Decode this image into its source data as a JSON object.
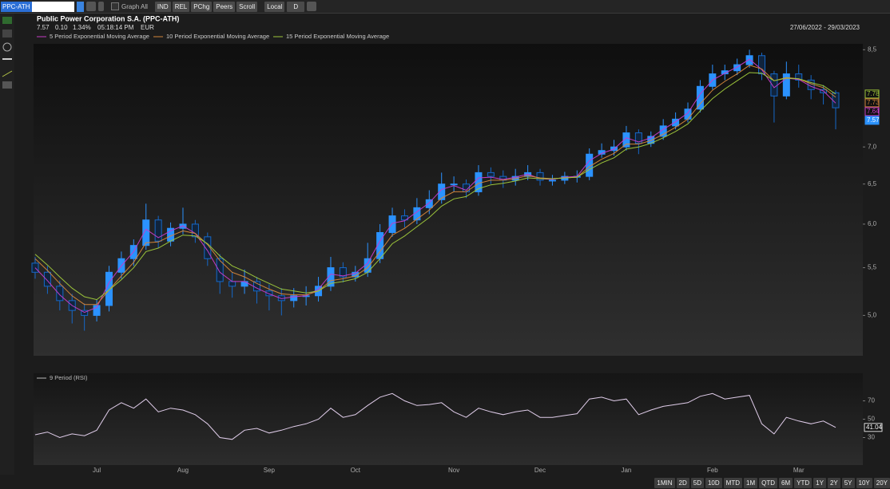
{
  "toolbar": {
    "symbol": "PPC-ATH",
    "graph_all": "Graph All",
    "buttons": [
      "IND",
      "REL",
      "PChg",
      "Peers",
      "Scroll"
    ],
    "currency_mode": "Local",
    "period": "D"
  },
  "header": {
    "title": "Public Power Corporation S.A. (PPC-ATH)",
    "last": "7.57",
    "change": "0.10",
    "change_pct": "1.34%",
    "time": "05:18:14 PM",
    "currency": "EUR",
    "date_range": "27/06/2022 - 29/03/2023"
  },
  "footer": {
    "periods": [
      "1MIN",
      "2D",
      "5D",
      "10D",
      "MTD",
      "1M",
      "QTD",
      "6M",
      "YTD",
      "1Y",
      "2Y",
      "5Y",
      "10Y",
      "20Y"
    ]
  },
  "chart_data": [
    {
      "type": "candlestick",
      "categories": [
        null,
        null,
        null,
        null,
        null,
        "Jul",
        null,
        null,
        null,
        null,
        null,
        null,
        "Aug",
        null,
        null,
        null,
        null,
        null,
        null,
        "Sep",
        null,
        null,
        null,
        null,
        null,
        null,
        "Oct",
        null,
        null,
        null,
        null,
        null,
        null,
        null,
        "Nov",
        null,
        null,
        null,
        null,
        null,
        null,
        "Dec",
        null,
        null,
        null,
        null,
        null,
        null,
        "Jan",
        null,
        null,
        null,
        null,
        null,
        null,
        "Feb",
        null,
        null,
        null,
        null,
        null,
        null,
        "Mar",
        null,
        null,
        null
      ],
      "open": [
        5.55,
        5.45,
        5.3,
        5.15,
        5.05,
        5.0,
        5.1,
        5.45,
        5.6,
        5.75,
        6.05,
        5.8,
        5.95,
        6.0,
        5.85,
        5.6,
        5.35,
        5.3,
        5.35,
        5.25,
        5.2,
        5.15,
        5.2,
        5.2,
        5.3,
        5.5,
        5.4,
        5.45,
        5.6,
        5.9,
        6.1,
        6.05,
        6.2,
        6.3,
        6.5,
        6.5,
        6.4,
        6.65,
        6.6,
        6.55,
        6.6,
        6.65,
        6.55,
        6.55,
        6.6,
        6.6,
        6.9,
        6.95,
        7.0,
        7.2,
        7.05,
        7.15,
        7.3,
        7.4,
        7.55,
        7.9,
        8.1,
        8.15,
        8.25,
        8.4,
        8.1,
        7.75,
        8.1,
        8.0,
        7.85,
        7.8
      ],
      "high": [
        5.62,
        5.52,
        5.36,
        5.22,
        5.12,
        5.16,
        5.52,
        5.68,
        5.82,
        6.25,
        6.1,
        6.02,
        6.2,
        6.05,
        5.9,
        5.65,
        5.45,
        5.48,
        5.4,
        5.32,
        5.28,
        5.28,
        5.3,
        5.4,
        5.62,
        5.56,
        5.52,
        5.78,
        6.0,
        6.2,
        6.18,
        6.32,
        6.42,
        6.65,
        6.6,
        6.56,
        6.75,
        6.72,
        6.68,
        6.7,
        6.75,
        6.7,
        6.62,
        6.66,
        6.68,
        6.98,
        7.05,
        7.1,
        7.3,
        7.25,
        7.22,
        7.4,
        7.5,
        7.65,
        8.0,
        8.25,
        8.25,
        8.35,
        8.5,
        8.45,
        8.15,
        8.3,
        8.25,
        8.08,
        7.92,
        7.84
      ],
      "low": [
        5.38,
        5.22,
        5.05,
        4.92,
        4.85,
        4.94,
        5.04,
        5.38,
        5.52,
        5.7,
        5.72,
        5.74,
        5.88,
        5.78,
        5.52,
        5.22,
        5.18,
        5.22,
        5.12,
        5.05,
        5.0,
        5.08,
        5.1,
        5.14,
        5.25,
        5.34,
        5.35,
        5.4,
        5.55,
        5.85,
        5.96,
        6.0,
        6.12,
        6.25,
        6.4,
        6.32,
        6.35,
        6.5,
        6.45,
        6.48,
        6.55,
        6.48,
        6.48,
        6.5,
        6.52,
        6.55,
        6.85,
        6.88,
        6.95,
        6.9,
        7.0,
        7.1,
        7.25,
        7.35,
        7.5,
        7.85,
        8.0,
        8.08,
        8.2,
        8.0,
        7.35,
        7.7,
        7.88,
        7.7,
        7.62,
        7.25
      ],
      "close": [
        5.45,
        5.3,
        5.15,
        5.05,
        5.0,
        5.1,
        5.45,
        5.6,
        5.75,
        6.05,
        5.8,
        5.95,
        6.0,
        5.85,
        5.6,
        5.35,
        5.3,
        5.35,
        5.25,
        5.2,
        5.15,
        5.2,
        5.2,
        5.3,
        5.5,
        5.4,
        5.45,
        5.6,
        5.9,
        6.1,
        6.05,
        6.2,
        6.3,
        6.5,
        6.5,
        6.4,
        6.65,
        6.6,
        6.55,
        6.6,
        6.65,
        6.55,
        6.55,
        6.6,
        6.6,
        6.9,
        6.95,
        7.0,
        7.2,
        7.05,
        7.15,
        7.3,
        7.4,
        7.55,
        7.9,
        8.1,
        8.15,
        8.25,
        8.4,
        8.1,
        7.75,
        8.1,
        8.0,
        7.85,
        7.8,
        7.57
      ],
      "up_color": "#2b92ff",
      "down_color": "#1668c8",
      "series": [
        {
          "name": "5 Period Exponential Moving Average",
          "color": "#c43cc4",
          "values": [
            5.5,
            5.36,
            5.21,
            5.1,
            5.03,
            5.08,
            5.34,
            5.52,
            5.68,
            5.94,
            5.84,
            5.92,
            5.98,
            5.89,
            5.69,
            5.45,
            5.35,
            5.35,
            5.28,
            5.22,
            5.17,
            5.19,
            5.2,
            5.27,
            5.43,
            5.41,
            5.44,
            5.55,
            5.8,
            6.01,
            6.04,
            6.15,
            6.26,
            6.43,
            6.48,
            6.42,
            6.58,
            6.59,
            6.56,
            6.59,
            6.63,
            6.57,
            6.56,
            6.59,
            6.6,
            6.81,
            6.91,
            6.97,
            7.13,
            7.07,
            7.13,
            7.25,
            7.36,
            7.49,
            7.78,
            8.0,
            8.11,
            8.21,
            8.34,
            8.17,
            7.88,
            8.03,
            8.01,
            7.9,
            7.83,
            7.64
          ]
        },
        {
          "name": "10 Period Exponential Moving Average",
          "color": "#d2843a",
          "values": [
            5.6,
            5.47,
            5.33,
            5.2,
            5.11,
            5.11,
            5.26,
            5.41,
            5.56,
            5.78,
            5.79,
            5.86,
            5.92,
            5.89,
            5.76,
            5.58,
            5.45,
            5.4,
            5.33,
            5.27,
            5.22,
            5.21,
            5.21,
            5.25,
            5.36,
            5.38,
            5.41,
            5.5,
            5.68,
            5.87,
            5.95,
            6.06,
            6.17,
            6.32,
            6.4,
            6.4,
            6.51,
            6.55,
            6.55,
            6.57,
            6.61,
            6.58,
            6.57,
            6.58,
            6.59,
            6.73,
            6.83,
            6.91,
            7.04,
            7.04,
            7.09,
            7.18,
            7.28,
            7.4,
            7.63,
            7.84,
            7.98,
            8.1,
            8.24,
            8.18,
            7.99,
            8.04,
            8.02,
            7.94,
            7.88,
            7.73
          ]
        },
        {
          "name": "15 Period Exponential Moving Average",
          "color": "#9cc43a",
          "values": [
            5.65,
            5.53,
            5.4,
            5.28,
            5.19,
            5.16,
            5.26,
            5.37,
            5.5,
            5.68,
            5.72,
            5.8,
            5.87,
            5.86,
            5.77,
            5.63,
            5.52,
            5.46,
            5.39,
            5.33,
            5.27,
            5.25,
            5.23,
            5.25,
            5.33,
            5.35,
            5.38,
            5.45,
            5.6,
            5.77,
            5.86,
            5.97,
            6.08,
            6.22,
            6.31,
            6.34,
            6.44,
            6.49,
            6.51,
            6.54,
            6.58,
            6.57,
            6.57,
            6.58,
            6.59,
            6.69,
            6.78,
            6.85,
            6.97,
            7.0,
            7.05,
            7.13,
            7.22,
            7.33,
            7.52,
            7.71,
            7.86,
            7.99,
            8.12,
            8.11,
            7.99,
            8.03,
            8.02,
            7.96,
            7.91,
            7.78
          ]
        }
      ],
      "log_scale": true,
      "ylim": [
        4.62,
        8.6
      ],
      "yticks": [
        {
          "value": 5,
          "label": "5,0"
        },
        {
          "value": 5.5,
          "label": "5,5"
        },
        {
          "value": 6,
          "label": "6,0"
        },
        {
          "value": 6.5,
          "label": "6,5"
        },
        {
          "value": 7,
          "label": "7,0"
        },
        {
          "value": 8.5,
          "label": "8,5"
        }
      ]
    },
    {
      "type": "line",
      "series": [
        {
          "name": "9 Period (RSI)",
          "color": "#e0cdea",
          "values": [
            33,
            36,
            30,
            34,
            32,
            38,
            60,
            68,
            62,
            72,
            58,
            62,
            60,
            55,
            45,
            30,
            28,
            38,
            40,
            35,
            38,
            42,
            45,
            50,
            62,
            52,
            55,
            65,
            74,
            78,
            70,
            65,
            66,
            68,
            58,
            52,
            62,
            58,
            55,
            58,
            60,
            52,
            52,
            54,
            56,
            72,
            74,
            70,
            72,
            55,
            60,
            64,
            66,
            68,
            75,
            78,
            72,
            74,
            76,
            45,
            34,
            52,
            48,
            45,
            48,
            41.04
          ]
        }
      ],
      "ylim": [
        0,
        100
      ],
      "yticks": [
        30,
        50,
        70
      ]
    }
  ]
}
